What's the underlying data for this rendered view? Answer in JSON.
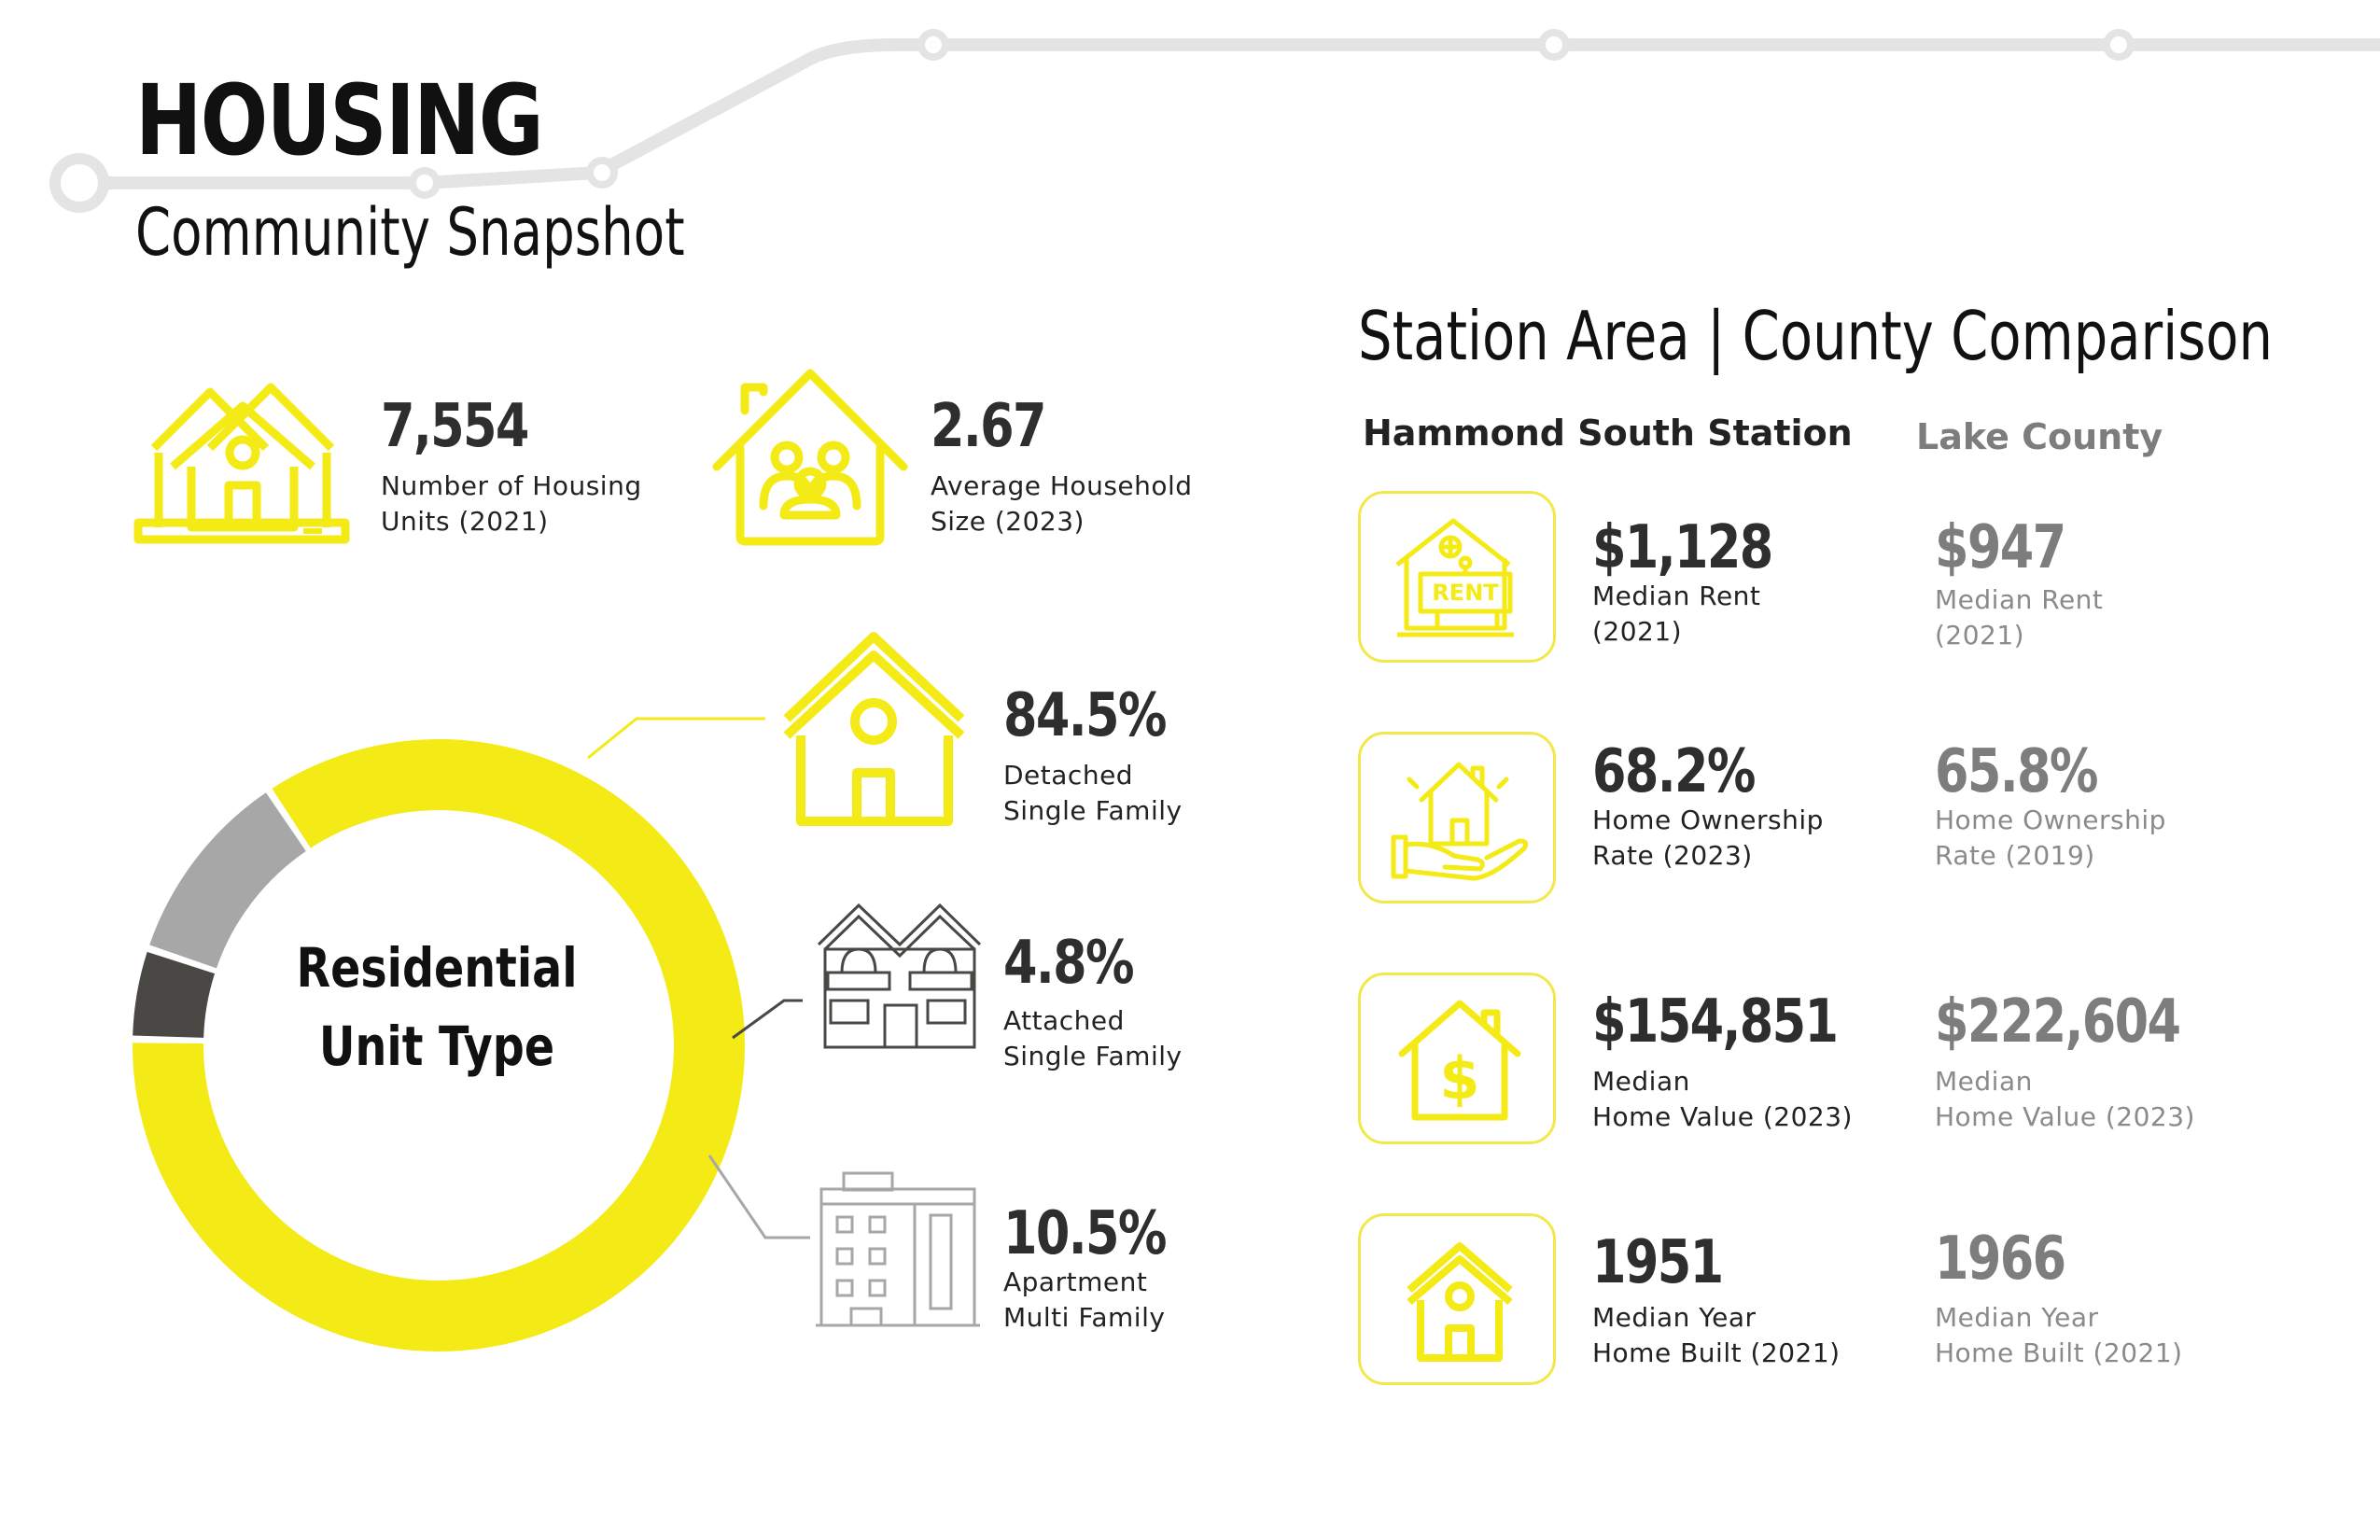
{
  "header": {
    "title": "HOUSING",
    "subtitle": "Community Snapshot"
  },
  "colors": {
    "accent": "#F4EA16",
    "dark": "#4A4845",
    "grey": "#A7A7A7",
    "track": "#E4E4E4",
    "secondary_text": "#808080"
  },
  "snapshot": [
    {
      "value": "7,554",
      "label": "Number of Housing\nUnits (2021)",
      "icon": "houses-icon"
    },
    {
      "value": "2.67",
      "label": "Average Household\nSize (2023)",
      "icon": "family-house-icon"
    }
  ],
  "chart_data": {
    "type": "pie",
    "title": "Residential\nUnit Type",
    "labels": [
      "Detached\nSingle Family",
      "Attached\nSingle Family",
      "Apartment\nMulti Family"
    ],
    "values": [
      84.5,
      4.8,
      10.5
    ],
    "display_values": [
      "84.5%",
      "4.8%",
      "10.5%"
    ],
    "colors": [
      "#F4EA16",
      "#4A4845",
      "#A7A7A7"
    ],
    "donut": true
  },
  "comparison": {
    "title": "Station Area |  County Comparison",
    "station_name": "Hammond South Station",
    "county_name": "Lake County",
    "rows": [
      {
        "icon": "rent-sign-icon",
        "station_value": "$1,128",
        "station_label": "Median Rent\n(2021)",
        "county_value": "$947",
        "county_label": "Median Rent\n(2021)"
      },
      {
        "icon": "hand-house-icon",
        "station_value": "68.2%",
        "station_label": "Home Ownership\nRate (2023)",
        "county_value": "65.8%",
        "county_label": "Home Ownership\nRate (2019)"
      },
      {
        "icon": "dollar-house-icon",
        "station_value": "$154,851",
        "station_label": "Median\nHome Value (2023)",
        "county_value": "$222,604",
        "county_label": "Median\nHome Value (2023)"
      },
      {
        "icon": "house-icon",
        "station_value": "1951",
        "station_label": "Median Year\nHome Built (2021)",
        "county_value": "1966",
        "county_label": "Median Year\nHome Built (2021)"
      }
    ]
  }
}
